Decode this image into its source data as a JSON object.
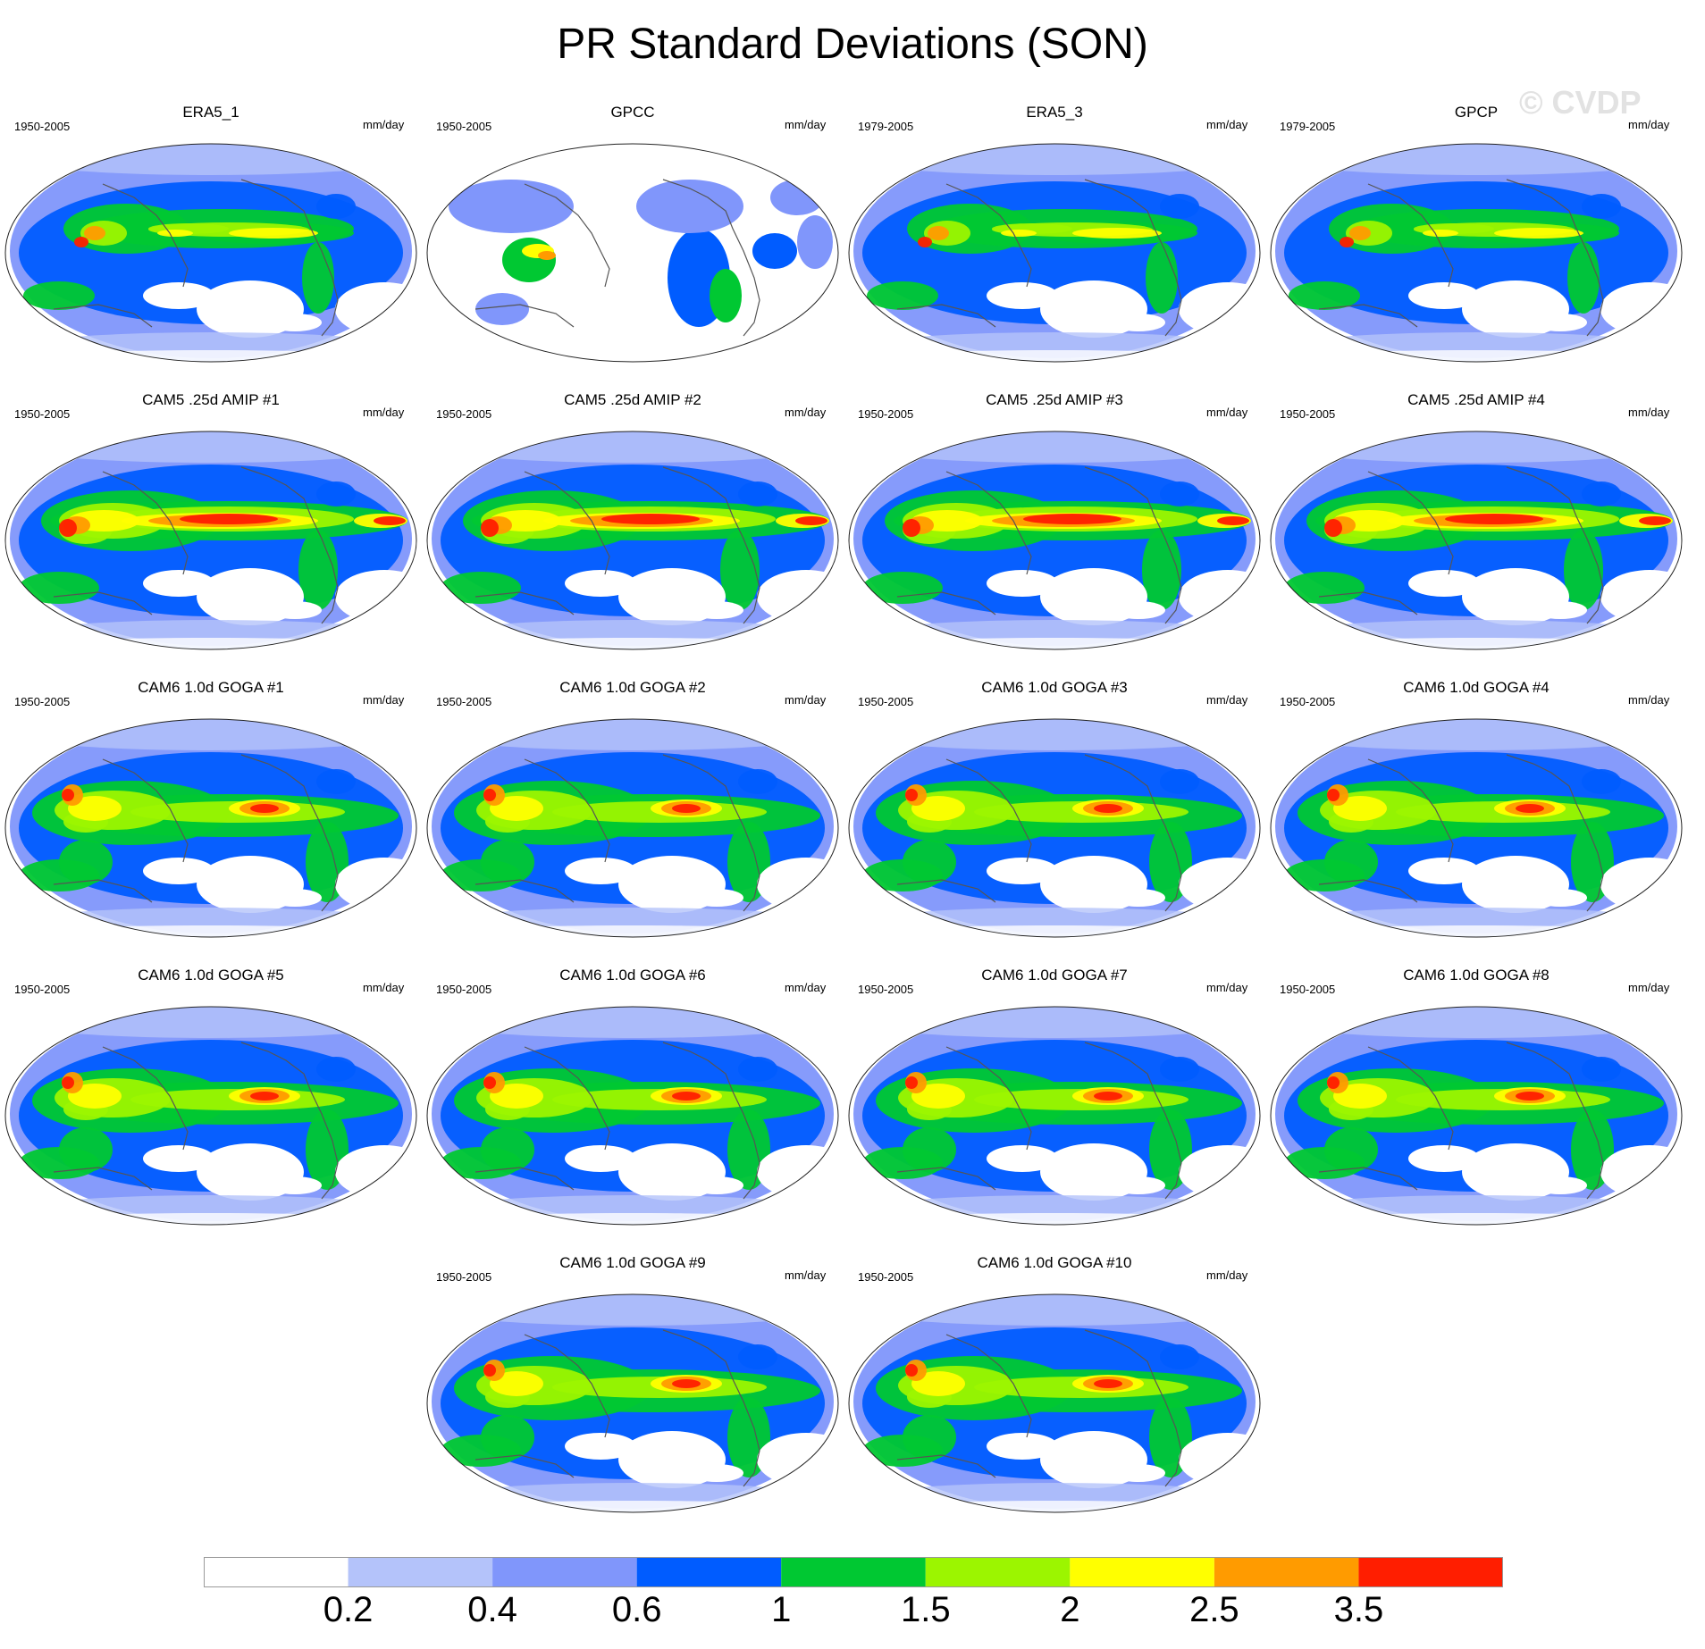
{
  "figure_title": "PR Standard Deviations (SON)",
  "watermark": "© CVDP",
  "chart_data": {
    "type": "heatmap",
    "title": "PR Standard Deviations (SON)",
    "units": "mm/day",
    "colorbar": {
      "boundaries": [
        "0.2",
        "0.4",
        "0.6",
        "1",
        "1.5",
        "2",
        "2.5",
        "3.5"
      ],
      "colors": [
        "#ffffff",
        "#b4c3fa",
        "#8096fb",
        "#005cff",
        "#00c832",
        "#9cf500",
        "#ffff00",
        "#ff9b00",
        "#ff1e00"
      ]
    },
    "panels": [
      {
        "title": "ERA5_1",
        "period": "1950-2005",
        "units": "mm/day",
        "land_only": false,
        "intensity": "obs"
      },
      {
        "title": "GPCC",
        "period": "1950-2005",
        "units": "mm/day",
        "land_only": true,
        "intensity": "obs"
      },
      {
        "title": "ERA5_3",
        "period": "1979-2005",
        "units": "mm/day",
        "land_only": false,
        "intensity": "obs"
      },
      {
        "title": "GPCP",
        "period": "1979-2005",
        "units": "mm/day",
        "land_only": false,
        "intensity": "obs"
      },
      {
        "title": "CAM5 .25d AMIP #1",
        "period": "1950-2005",
        "units": "mm/day",
        "land_only": false,
        "intensity": "amip"
      },
      {
        "title": "CAM5 .25d AMIP #2",
        "period": "1950-2005",
        "units": "mm/day",
        "land_only": false,
        "intensity": "amip"
      },
      {
        "title": "CAM5 .25d AMIP #3",
        "period": "1950-2005",
        "units": "mm/day",
        "land_only": false,
        "intensity": "amip"
      },
      {
        "title": "CAM5 .25d AMIP #4",
        "period": "1950-2005",
        "units": "mm/day",
        "land_only": false,
        "intensity": "amip"
      },
      {
        "title": "CAM6 1.0d GOGA #1",
        "period": "1950-2005",
        "units": "mm/day",
        "land_only": false,
        "intensity": "goga"
      },
      {
        "title": "CAM6 1.0d GOGA #2",
        "period": "1950-2005",
        "units": "mm/day",
        "land_only": false,
        "intensity": "goga"
      },
      {
        "title": "CAM6 1.0d GOGA #3",
        "period": "1950-2005",
        "units": "mm/day",
        "land_only": false,
        "intensity": "goga"
      },
      {
        "title": "CAM6 1.0d GOGA #4",
        "period": "1950-2005",
        "units": "mm/day",
        "land_only": false,
        "intensity": "goga"
      },
      {
        "title": "CAM6 1.0d GOGA #5",
        "period": "1950-2005",
        "units": "mm/day",
        "land_only": false,
        "intensity": "goga"
      },
      {
        "title": "CAM6 1.0d GOGA #6",
        "period": "1950-2005",
        "units": "mm/day",
        "land_only": false,
        "intensity": "goga"
      },
      {
        "title": "CAM6 1.0d GOGA #7",
        "period": "1950-2005",
        "units": "mm/day",
        "land_only": false,
        "intensity": "goga"
      },
      {
        "title": "CAM6 1.0d GOGA #8",
        "period": "1950-2005",
        "units": "mm/day",
        "land_only": false,
        "intensity": "goga"
      },
      {
        "title": "CAM6 1.0d GOGA #9",
        "period": "1950-2005",
        "units": "mm/day",
        "land_only": false,
        "intensity": "goga"
      },
      {
        "title": "CAM6 1.0d GOGA #10",
        "period": "1950-2005",
        "units": "mm/day",
        "land_only": false,
        "intensity": "goga"
      }
    ]
  }
}
